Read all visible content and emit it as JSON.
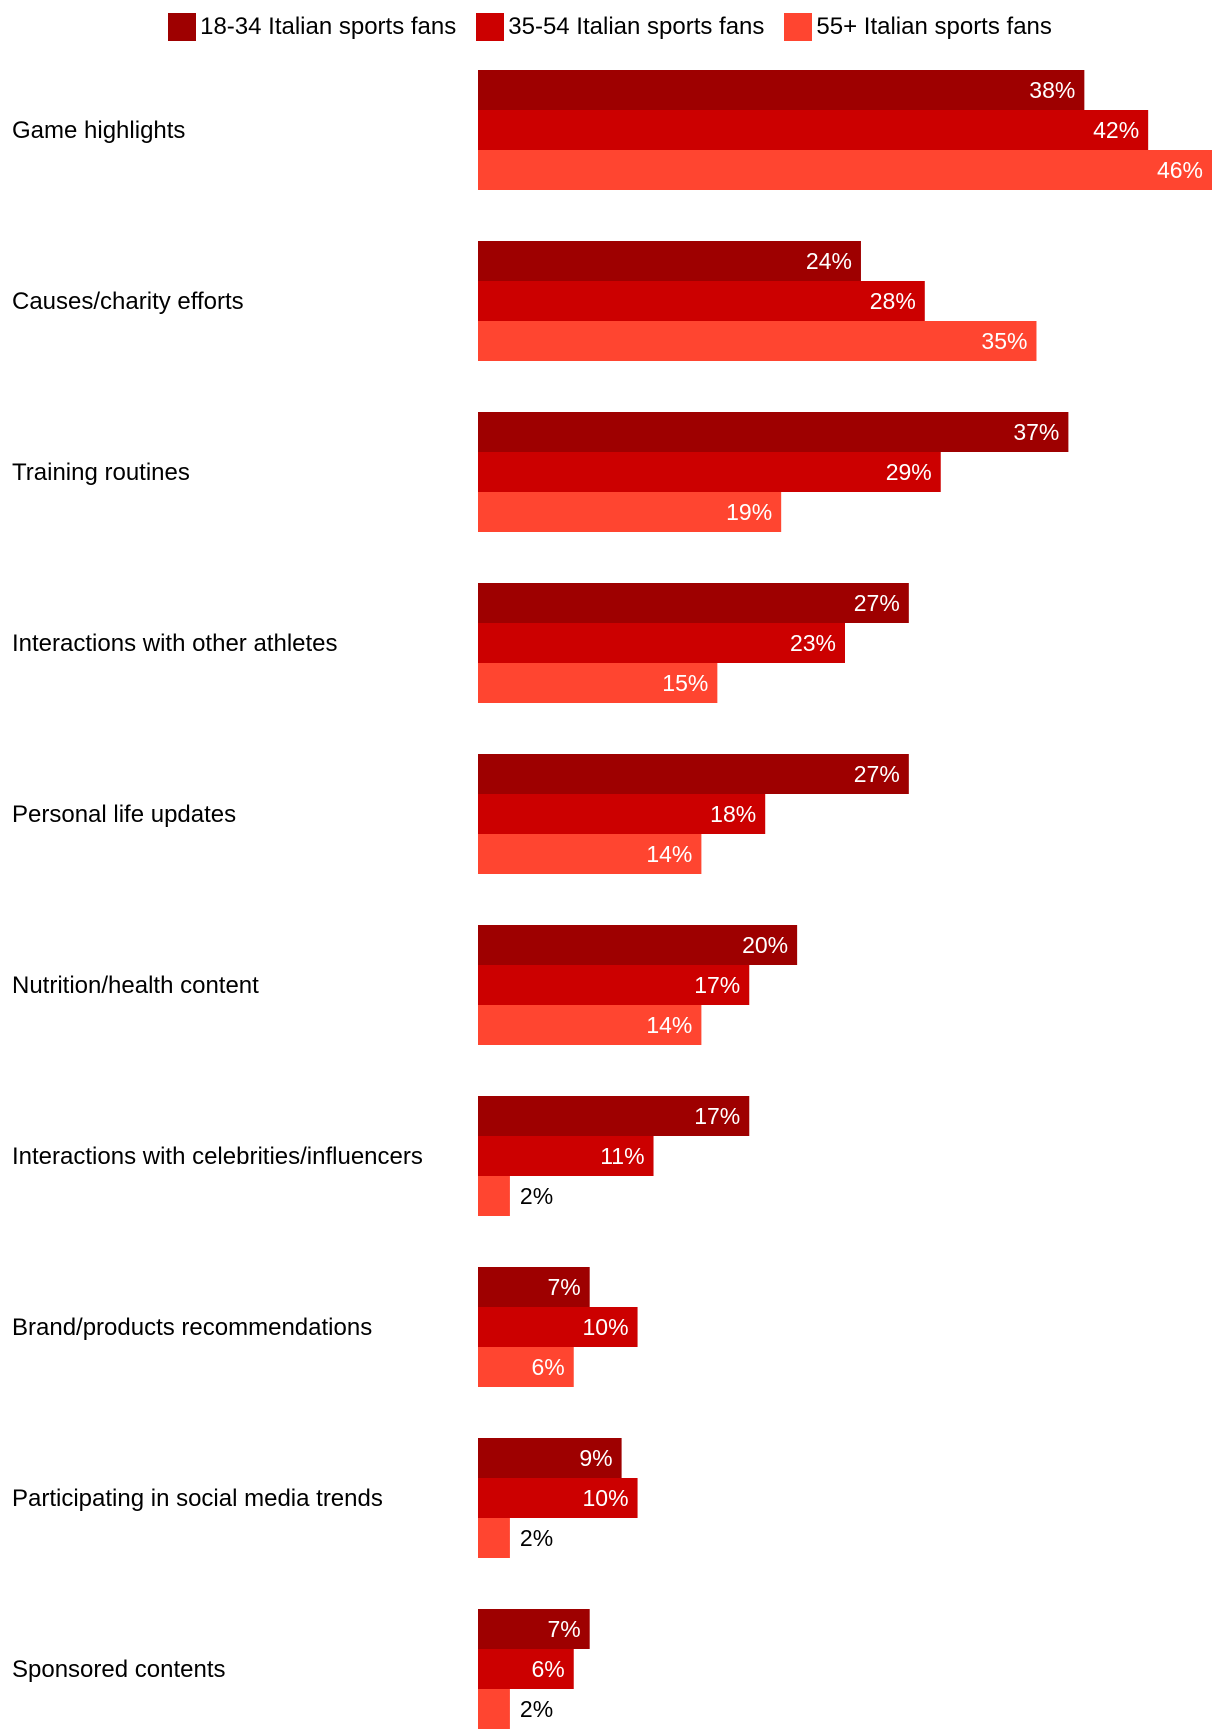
{
  "chart_data": {
    "type": "bar",
    "orientation": "horizontal",
    "title": "",
    "xlabel": "",
    "ylabel": "",
    "xlim": [
      0,
      46
    ],
    "grid": false,
    "legend_position": "top-center",
    "value_suffix": "%",
    "categories": [
      "Game highlights",
      "Causes/charity efforts",
      "Training routines",
      "Interactions with other athletes",
      "Personal life updates",
      "Nutrition/health content",
      "Interactions with celebrities/influencers",
      "Brand/products recommendations",
      "Participating in social media trends",
      "Sponsored contents"
    ],
    "series": [
      {
        "name": "18-34 Italian sports fans",
        "color": "#9e0000",
        "values": [
          38,
          24,
          37,
          27,
          27,
          20,
          17,
          7,
          9,
          7
        ]
      },
      {
        "name": "35-54 Italian sports fans",
        "color": "#cc0000",
        "values": [
          42,
          28,
          29,
          23,
          18,
          17,
          11,
          10,
          10,
          6
        ]
      },
      {
        "name": "55+ Italian sports fans",
        "color": "#ff4530",
        "values": [
          46,
          35,
          19,
          15,
          14,
          14,
          2,
          6,
          2,
          2
        ]
      }
    ]
  }
}
